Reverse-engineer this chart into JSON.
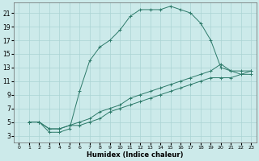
{
  "xlabel": "Humidex (Indice chaleur)",
  "bg_color": "#cceaea",
  "grid_color": "#aad4d4",
  "line_color": "#2d7a6a",
  "xlim": [
    -0.5,
    23.5
  ],
  "ylim": [
    2,
    22.5
  ],
  "xticks": [
    0,
    1,
    2,
    3,
    4,
    5,
    6,
    7,
    8,
    9,
    10,
    11,
    12,
    13,
    14,
    15,
    16,
    17,
    18,
    19,
    20,
    21,
    22,
    23
  ],
  "yticks": [
    3,
    5,
    7,
    9,
    11,
    13,
    15,
    17,
    19,
    21
  ],
  "curve1_x": [
    1,
    2,
    3,
    4,
    5,
    6,
    7,
    8,
    9,
    10,
    11,
    12,
    13,
    14,
    15,
    16,
    17,
    18,
    19,
    20,
    21,
    22,
    23
  ],
  "curve1_y": [
    5,
    5,
    3.5,
    3.5,
    4,
    9.5,
    14,
    16,
    17,
    18.5,
    20.5,
    21.5,
    21.5,
    21.5,
    22,
    21.5,
    21,
    19.5,
    17,
    13,
    12.5,
    12,
    12
  ],
  "curve2_x": [
    1,
    2,
    3,
    4,
    5,
    6,
    7,
    8,
    9,
    10,
    11,
    12,
    13,
    14,
    15,
    16,
    17,
    18,
    19,
    20,
    21,
    22,
    23
  ],
  "curve2_y": [
    5,
    5,
    4,
    4,
    4.5,
    5,
    5.5,
    6.5,
    7,
    7.5,
    8.5,
    9,
    9.5,
    10,
    10.5,
    11,
    11.5,
    12,
    12.5,
    13.5,
    12.5,
    12.5,
    12.5
  ],
  "curve3_x": [
    1,
    2,
    3,
    4,
    5,
    6,
    7,
    8,
    9,
    10,
    11,
    12,
    13,
    14,
    15,
    16,
    17,
    18,
    19,
    20,
    21,
    22,
    23
  ],
  "curve3_y": [
    5,
    5,
    4,
    4,
    4.5,
    4.5,
    5,
    5.5,
    6.5,
    7,
    7.5,
    8,
    8.5,
    9,
    9.5,
    10,
    10.5,
    11,
    11.5,
    11.5,
    11.5,
    12,
    12.5
  ]
}
